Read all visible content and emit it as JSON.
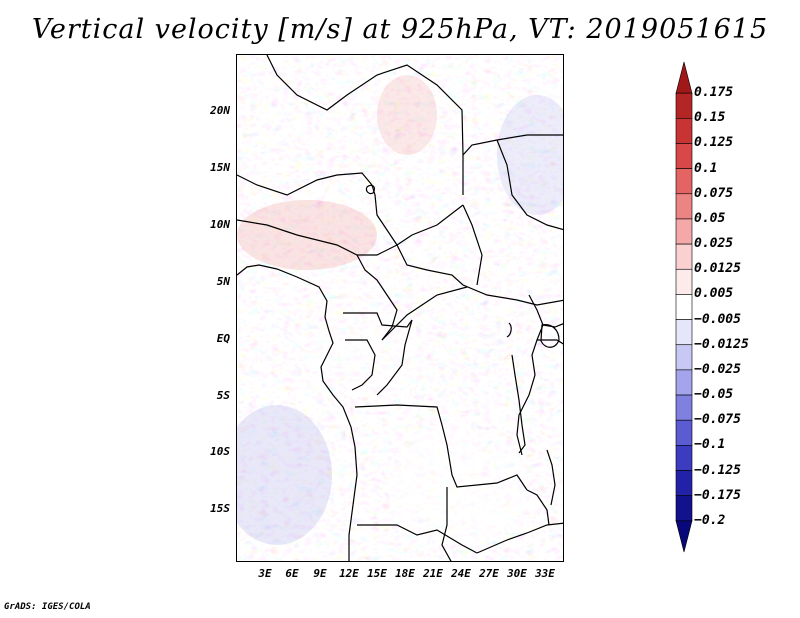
{
  "title": "Vertical velocity [m/s] at 925hPa, VT: 2019051615",
  "map": {
    "lat_ticks": [
      "20N",
      "15N",
      "10N",
      "5N",
      "EQ",
      "5S",
      "10S",
      "15S"
    ],
    "lon_ticks": [
      "3E",
      "6E",
      "9E",
      "12E",
      "15E",
      "18E",
      "21E",
      "24E",
      "27E",
      "30E",
      "33E"
    ]
  },
  "colorbar": {
    "labels": [
      "0.175",
      "0.15",
      "0.125",
      "0.1",
      "0.075",
      "0.05",
      "0.025",
      "0.0125",
      "0.005",
      "−0.005",
      "−0.0125",
      "−0.025",
      "−0.05",
      "−0.075",
      "−0.1",
      "−0.125",
      "−0.175",
      "−0.2"
    ],
    "colors": [
      "#a01818",
      "#b42626",
      "#c83434",
      "#d84848",
      "#e46464",
      "#ec8484",
      "#f4a8a8",
      "#fad0d0",
      "#fdeaea",
      "#ffffff",
      "#e6e6fb",
      "#c8c8f4",
      "#a4a4ec",
      "#8080e0",
      "#5c5cd2",
      "#3c3cc0",
      "#2222a8",
      "#12128c",
      "#08087a"
    ]
  },
  "credit": "GrADS: IGES/COLA"
}
